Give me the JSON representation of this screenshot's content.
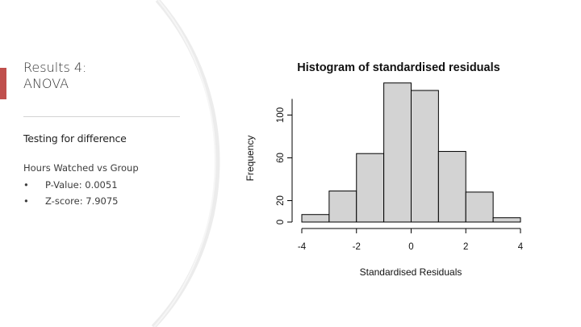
{
  "slide": {
    "title_lines": [
      "Results 4:",
      "ANOVA"
    ],
    "accent_color": "#c0504d",
    "subtitle": "Testing for difference",
    "body_heading": "Hours Watched vs Group",
    "bullets": [
      "P-Value: 0.0051",
      "Z-score: 7.9075"
    ],
    "bullet_glyph": "•"
  },
  "chart_data": {
    "type": "bar",
    "title": "Histogram of standardised residuals",
    "xlabel": "Standardised Residuals",
    "ylabel": "Frequency",
    "bin_edges": [
      -4,
      -3,
      -2,
      -1,
      0,
      1,
      2,
      3,
      4
    ],
    "values": [
      7,
      29,
      64,
      130,
      123,
      66,
      28,
      4
    ],
    "xlim": [
      -4,
      4
    ],
    "ylim": [
      0,
      120
    ],
    "xticks": [
      -4,
      -2,
      0,
      2,
      4
    ],
    "xtick_labels": [
      "-4",
      "-2",
      "0",
      "2",
      "4"
    ],
    "yticks": [
      0,
      20,
      60,
      100
    ],
    "ytick_labels": [
      "0",
      "20",
      "60",
      "100"
    ],
    "bar_fill": "#d3d3d3",
    "bar_stroke": "#000000",
    "grid": false
  }
}
